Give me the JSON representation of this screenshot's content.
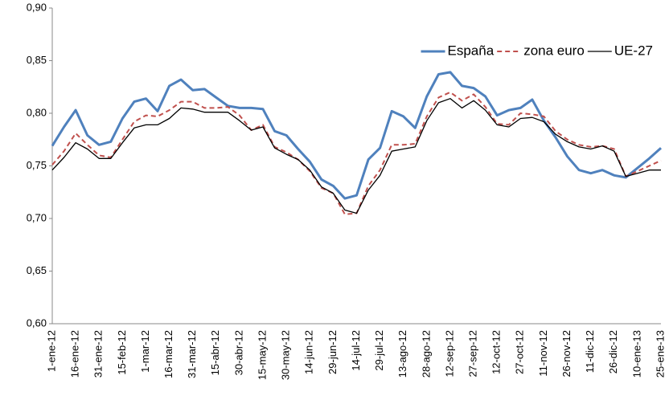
{
  "chart_data": {
    "type": "line",
    "categories": [
      "1-ene-12",
      null,
      "16-ene-12",
      null,
      "31-ene-12",
      null,
      "15-feb-12",
      null,
      "1-mar-12",
      null,
      "16-mar-12",
      null,
      "31-mar-12",
      null,
      "15-abr-12",
      null,
      "30-abr-12",
      null,
      "15-may-12",
      null,
      "30-may-12",
      null,
      "14-jun-12",
      null,
      "29-jun-12",
      null,
      "14-jul-12",
      null,
      "29-jul-12",
      null,
      "13-ago-12",
      null,
      "28-ago-12",
      null,
      "12-sep-12",
      null,
      "27-sep-12",
      null,
      "12-oct-12",
      null,
      "27-oct-12",
      null,
      "11-nov-12",
      null,
      "26-nov-12",
      null,
      "11-dic-12",
      null,
      "26-dic-12",
      null,
      "10-ene-13",
      null,
      "25-ene-13"
    ],
    "series": [
      {
        "name": "España",
        "color": "#4f81bd",
        "width": 3,
        "dash": false,
        "values": [
          0.769,
          0.787,
          0.803,
          0.779,
          0.77,
          0.773,
          0.795,
          0.811,
          0.814,
          0.802,
          0.826,
          0.832,
          0.822,
          0.823,
          0.815,
          0.807,
          0.805,
          0.805,
          0.804,
          0.783,
          0.779,
          0.766,
          0.754,
          0.737,
          0.731,
          0.719,
          0.722,
          0.756,
          0.767,
          0.802,
          0.797,
          0.786,
          0.816,
          0.837,
          0.839,
          0.826,
          0.824,
          0.816,
          0.798,
          0.803,
          0.805,
          0.813,
          0.793,
          0.777,
          0.759,
          0.746,
          0.743,
          0.746,
          0.741,
          0.739,
          0.748,
          0.757,
          0.767
        ]
      },
      {
        "name": "zona euro",
        "color": "#c0504d",
        "width": 2,
        "dash": true,
        "values": [
          0.751,
          0.764,
          0.781,
          0.77,
          0.76,
          0.758,
          0.775,
          0.792,
          0.798,
          0.797,
          0.803,
          0.811,
          0.811,
          0.805,
          0.805,
          0.806,
          0.798,
          0.784,
          0.789,
          0.768,
          0.763,
          0.756,
          0.745,
          0.729,
          0.724,
          0.704,
          0.705,
          0.731,
          0.746,
          0.77,
          0.77,
          0.771,
          0.797,
          0.815,
          0.82,
          0.812,
          0.818,
          0.806,
          0.79,
          0.789,
          0.8,
          0.799,
          0.797,
          0.783,
          0.775,
          0.77,
          0.768,
          0.769,
          0.766,
          0.74,
          0.745,
          0.75,
          0.755
        ]
      },
      {
        "name": "UE-27",
        "color": "#000000",
        "width": 1.3,
        "dash": false,
        "values": [
          0.746,
          0.758,
          0.772,
          0.766,
          0.757,
          0.757,
          0.772,
          0.786,
          0.789,
          0.789,
          0.795,
          0.805,
          0.804,
          0.801,
          0.801,
          0.801,
          0.793,
          0.784,
          0.787,
          0.767,
          0.761,
          0.756,
          0.746,
          0.73,
          0.724,
          0.708,
          0.705,
          0.727,
          0.741,
          0.764,
          0.766,
          0.768,
          0.793,
          0.81,
          0.814,
          0.805,
          0.812,
          0.803,
          0.789,
          0.787,
          0.795,
          0.796,
          0.792,
          0.78,
          0.773,
          0.768,
          0.766,
          0.769,
          0.764,
          0.74,
          0.743,
          0.746,
          0.746
        ]
      }
    ],
    "ylim": [
      0.6,
      0.9
    ],
    "yticks": [
      {
        "value": 0.6,
        "label": "0,60"
      },
      {
        "value": 0.65,
        "label": "0,65"
      },
      {
        "value": 0.7,
        "label": "0,70"
      },
      {
        "value": 0.75,
        "label": "0,75"
      },
      {
        "value": 0.8,
        "label": "0,80"
      },
      {
        "value": 0.85,
        "label": "0,85"
      },
      {
        "value": 0.9,
        "label": "0,90"
      }
    ],
    "grid": false,
    "legend": "top-right"
  }
}
